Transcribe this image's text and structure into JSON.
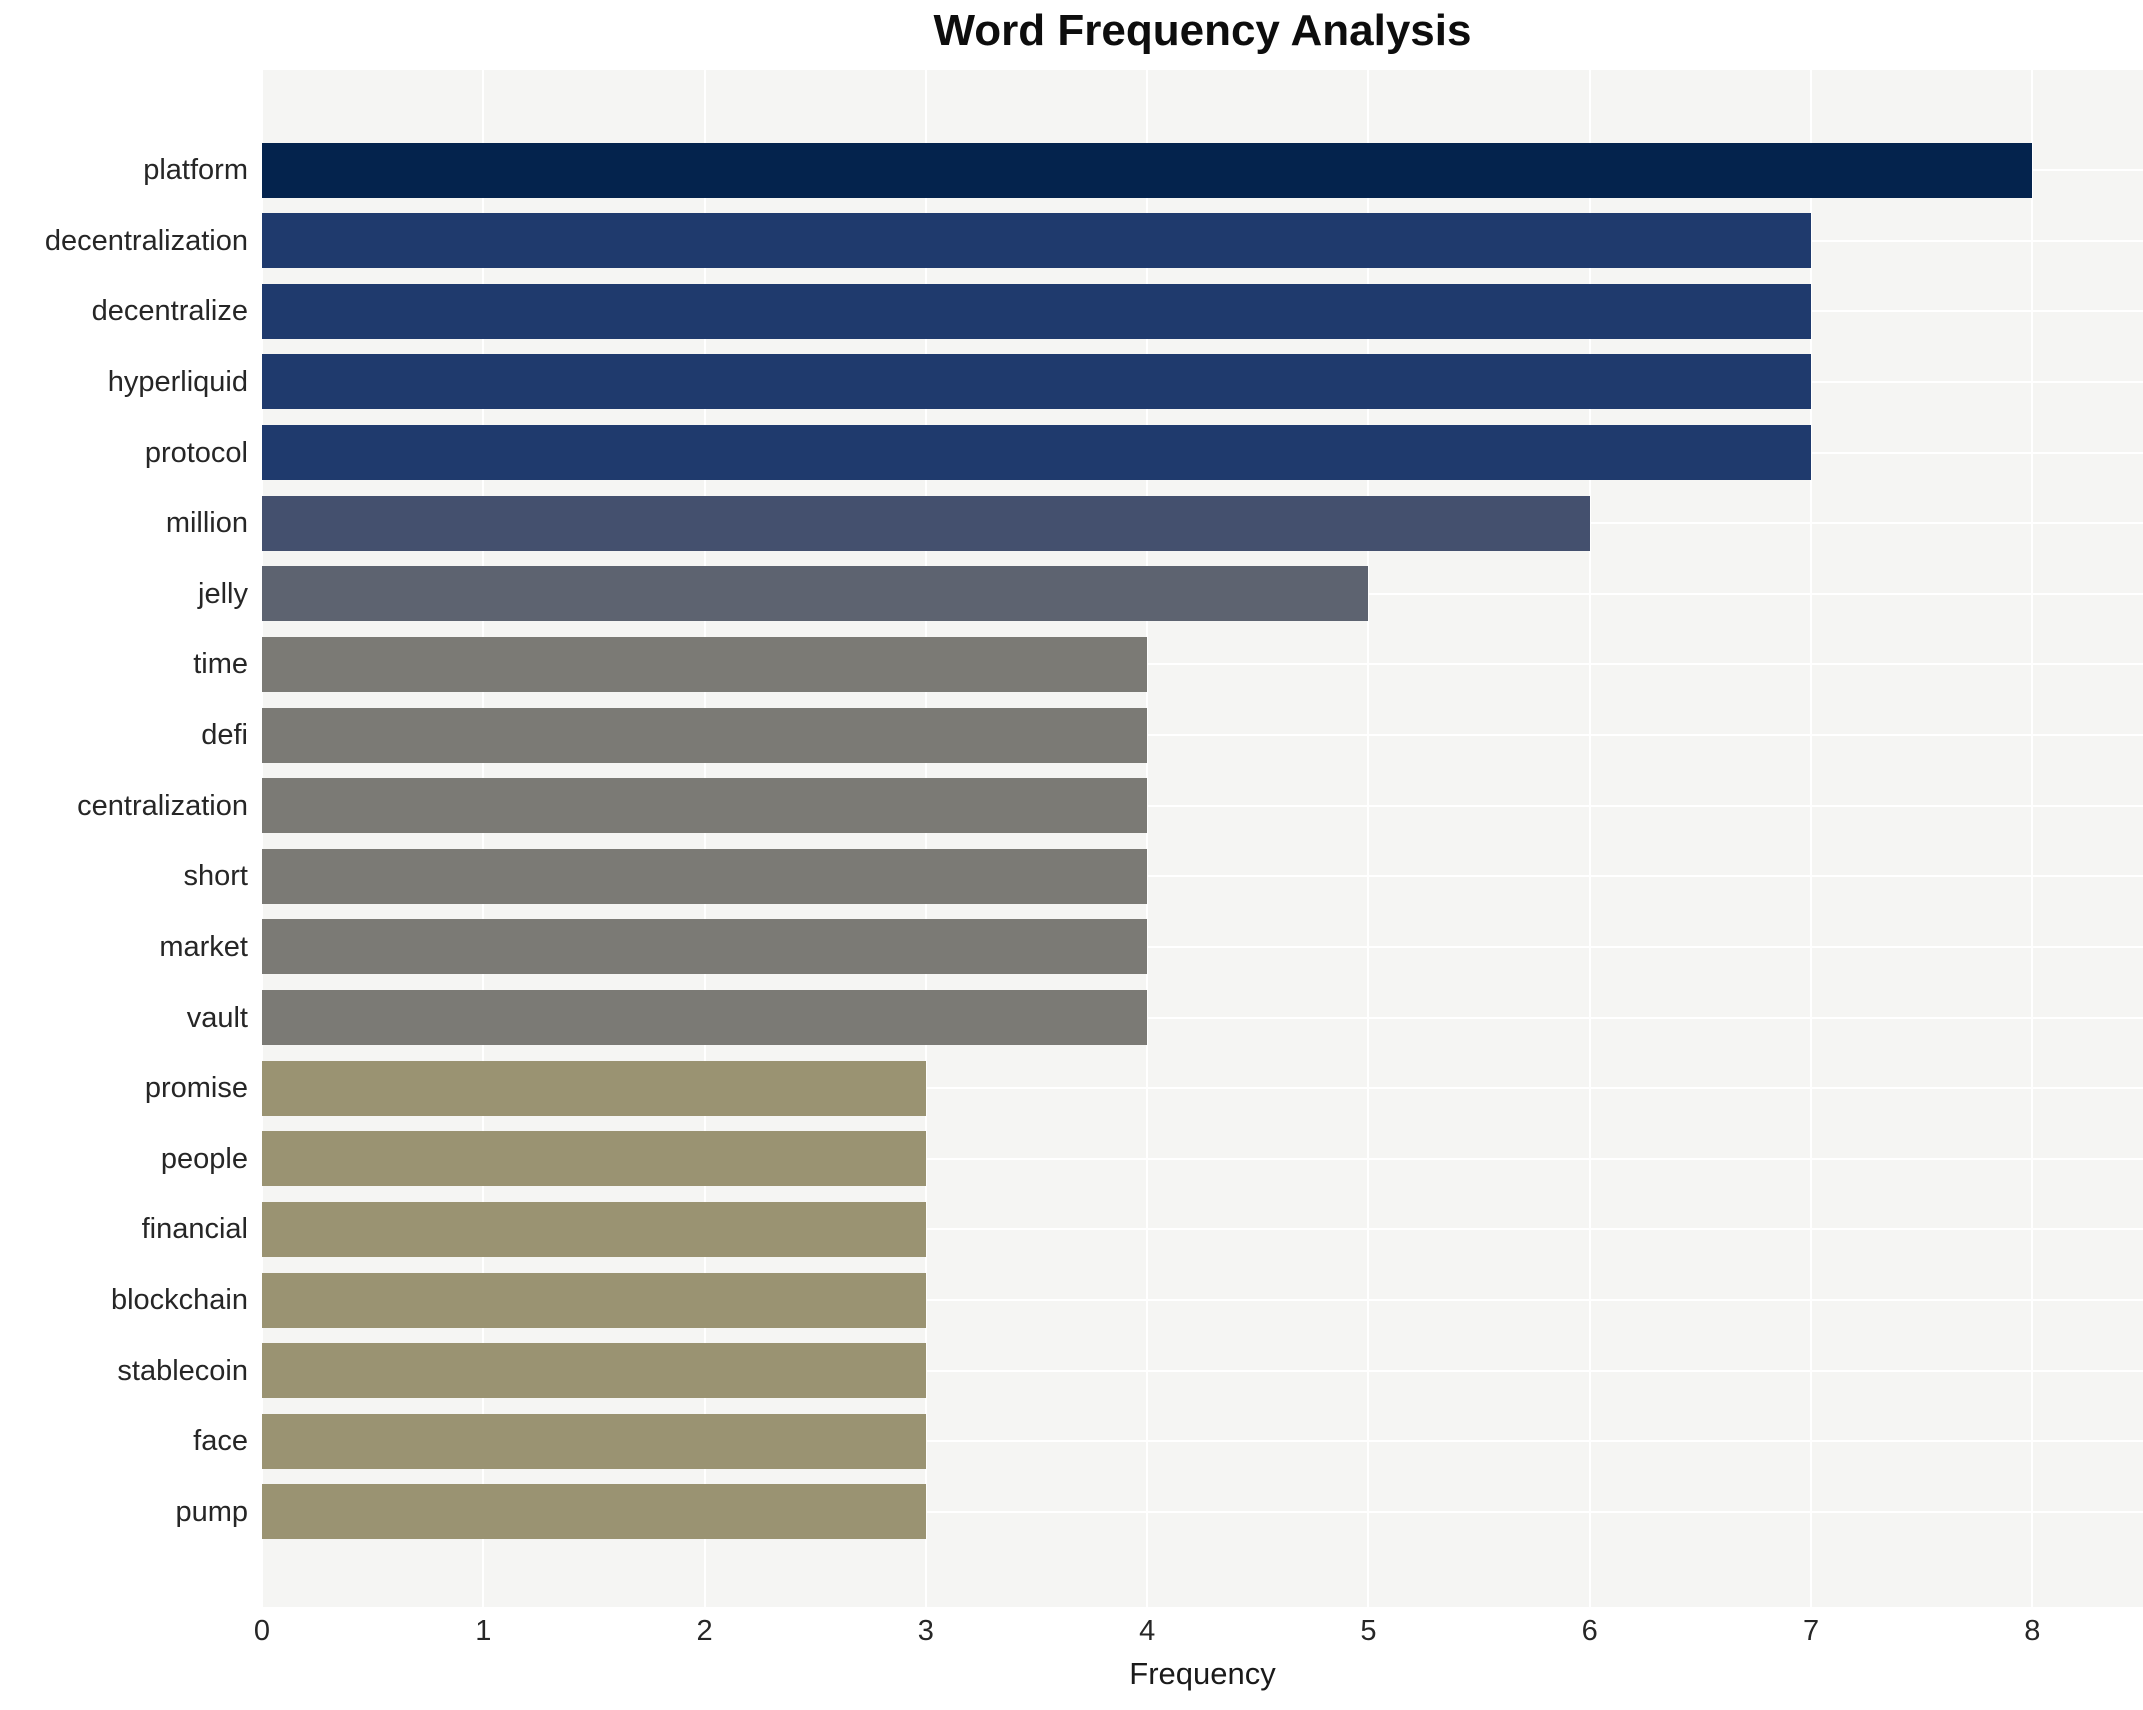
{
  "chart_data": {
    "type": "bar",
    "orientation": "horizontal",
    "title": "Word Frequency Analysis",
    "xlabel": "Frequency",
    "ylabel": "",
    "categories": [
      "platform",
      "decentralization",
      "decentralize",
      "hyperliquid",
      "protocol",
      "million",
      "jelly",
      "time",
      "defi",
      "centralization",
      "short",
      "market",
      "vault",
      "promise",
      "people",
      "financial",
      "blockchain",
      "stablecoin",
      "face",
      "pump"
    ],
    "values": [
      8,
      7,
      7,
      7,
      7,
      6,
      5,
      4,
      4,
      4,
      4,
      4,
      4,
      3,
      3,
      3,
      3,
      3,
      3,
      3
    ],
    "xlim": [
      0,
      8.5
    ],
    "x_ticks": [
      "0",
      "1",
      "2",
      "3",
      "4",
      "5",
      "6",
      "7",
      "8"
    ],
    "grid": true,
    "legend_position": "none",
    "colors": {
      "value_8": "#04234d",
      "value_7": "#1f3a6d",
      "value_6": "#44506e",
      "value_5": "#5d6370",
      "value_4": "#7b7a75",
      "value_3": "#9a9372",
      "plot_background": "#f5f5f3",
      "gridline": "#ffffff",
      "text": "#262626"
    }
  }
}
